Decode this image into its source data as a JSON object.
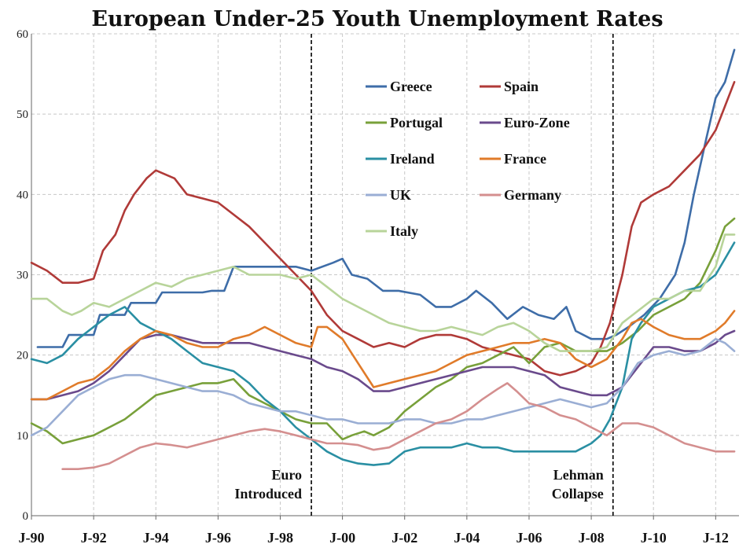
{
  "chart_data": {
    "type": "line",
    "title": "European Under-25 Youth Unemployment Rates",
    "xlabel": "",
    "ylabel": "",
    "ylim": [
      0,
      60
    ],
    "yticks": [
      0,
      10,
      20,
      30,
      40,
      50,
      60
    ],
    "xlim": [
      1990.0,
      2012.75
    ],
    "xticks": [
      {
        "value": 1990,
        "label": "J-90"
      },
      {
        "value": 1992,
        "label": "J-92"
      },
      {
        "value": 1994,
        "label": "J-94"
      },
      {
        "value": 1996,
        "label": "J-96"
      },
      {
        "value": 1998,
        "label": "J-98"
      },
      {
        "value": 2000,
        "label": "J-00"
      },
      {
        "value": 2002,
        "label": "J-02"
      },
      {
        "value": 2004,
        "label": "J-04"
      },
      {
        "value": 2006,
        "label": "J-06"
      },
      {
        "value": 2008,
        "label": "J-08"
      },
      {
        "value": 2010,
        "label": "J-10"
      },
      {
        "value": 2012,
        "label": "J-12"
      }
    ],
    "grid": true,
    "legend_placement": "top-center",
    "annotations": [
      {
        "x": 1999.0,
        "lines": [
          "Euro",
          "Introduced"
        ],
        "side": "left"
      },
      {
        "x": 2008.7,
        "lines": [
          "Lehman",
          "Collapse"
        ],
        "side": "left"
      }
    ],
    "series": [
      {
        "name": "Greece",
        "color": "#3e6da8",
        "x": [
          1990.2,
          1991.0,
          1991.2,
          1992.0,
          1992.2,
          1993.0,
          1993.2,
          1994.0,
          1994.2,
          1995.5,
          1995.8,
          1996.2,
          1996.5,
          1998.5,
          1999.0,
          1999.7,
          2000.0,
          2000.3,
          2000.8,
          2001.3,
          2001.8,
          2002.5,
          2003.0,
          2003.5,
          2004.0,
          2004.3,
          2004.8,
          2005.3,
          2005.8,
          2006.3,
          2006.8,
          2007.2,
          2007.5,
          2008.0,
          2008.5,
          2008.8,
          2009.2,
          2009.7,
          2010.2,
          2010.7,
          2011.0,
          2011.3,
          2011.7,
          2012.0,
          2012.3,
          2012.6
        ],
        "y": [
          21,
          21,
          22.5,
          22.5,
          25,
          25,
          26.5,
          26.5,
          27.8,
          27.8,
          28,
          28,
          31,
          31,
          30.5,
          31.5,
          32,
          30,
          29.5,
          28,
          28,
          27.5,
          26,
          26,
          27,
          28,
          26.5,
          24.5,
          26,
          25,
          24.5,
          26,
          23,
          22,
          22,
          22.5,
          23.5,
          25,
          27,
          30,
          34,
          40,
          47,
          52,
          54,
          58
        ]
      },
      {
        "name": "Spain",
        "color": "#b03a38",
        "x": [
          1990.0,
          1990.5,
          1991.0,
          1991.5,
          1992.0,
          1992.3,
          1992.7,
          1993.0,
          1993.3,
          1993.7,
          1994.0,
          1994.3,
          1994.6,
          1995.0,
          1995.5,
          1996.0,
          1996.5,
          1997.0,
          1997.5,
          1998.0,
          1998.5,
          1999.0,
          1999.5,
          2000.0,
          2000.5,
          2001.0,
          2001.5,
          2002.0,
          2002.5,
          2003.0,
          2003.5,
          2004.0,
          2004.5,
          2005.0,
          2005.5,
          2006.0,
          2006.5,
          2007.0,
          2007.5,
          2008.0,
          2008.3,
          2008.6,
          2009.0,
          2009.3,
          2009.6,
          2010.0,
          2010.5,
          2011.0,
          2011.5,
          2012.0,
          2012.3,
          2012.6
        ],
        "y": [
          31.5,
          30.5,
          29,
          29,
          29.5,
          33,
          35,
          38,
          40,
          42,
          43,
          42.5,
          42,
          40,
          39.5,
          39,
          37.5,
          36,
          34,
          32,
          30,
          28,
          25,
          23,
          22,
          21,
          21.5,
          21,
          22,
          22.5,
          22.5,
          22,
          21,
          20.5,
          20,
          19.5,
          18,
          17.5,
          18,
          19,
          21,
          24,
          30,
          36,
          39,
          40,
          41,
          43,
          45,
          48,
          51,
          54
        ]
      },
      {
        "name": "Portugal",
        "color": "#78a03a",
        "x": [
          1990.0,
          1990.5,
          1991.0,
          1991.5,
          1992.0,
          1992.5,
          1993.0,
          1993.5,
          1994.0,
          1994.5,
          1995.0,
          1995.5,
          1996.0,
          1996.5,
          1997.0,
          1997.5,
          1998.0,
          1998.5,
          1999.0,
          1999.5,
          2000.0,
          2000.3,
          2000.7,
          2001.0,
          2001.5,
          2002.0,
          2002.5,
          2003.0,
          2003.5,
          2004.0,
          2004.5,
          2005.0,
          2005.5,
          2006.0,
          2006.5,
          2007.0,
          2007.5,
          2008.0,
          2008.5,
          2009.0,
          2009.5,
          2010.0,
          2010.5,
          2011.0,
          2011.5,
          2012.0,
          2012.3,
          2012.6
        ],
        "y": [
          11.5,
          10.5,
          9,
          9.5,
          10,
          11,
          12,
          13.5,
          15,
          15.5,
          16,
          16.5,
          16.5,
          17,
          15,
          14,
          13,
          12,
          11.5,
          11.5,
          9.5,
          10,
          10.5,
          10,
          11,
          13,
          14.5,
          16,
          17,
          18.5,
          19,
          20,
          21,
          19,
          21,
          21.5,
          20.5,
          20.5,
          20.5,
          21.5,
          23,
          25,
          26,
          27,
          29,
          33,
          36,
          37
        ]
      },
      {
        "name": "Euro-Zone",
        "color": "#6a4a8c",
        "x": [
          1990.0,
          1990.5,
          1991.0,
          1991.5,
          1992.0,
          1992.5,
          1993.0,
          1993.5,
          1994.0,
          1994.5,
          1995.0,
          1995.5,
          1996.0,
          1996.5,
          1997.0,
          1997.5,
          1998.0,
          1998.5,
          1999.0,
          1999.5,
          2000.0,
          2000.5,
          2001.0,
          2001.5,
          2002.0,
          2002.5,
          2003.0,
          2003.5,
          2004.0,
          2004.5,
          2005.0,
          2005.5,
          2006.0,
          2006.5,
          2007.0,
          2007.5,
          2008.0,
          2008.5,
          2009.0,
          2009.5,
          2010.0,
          2010.5,
          2011.0,
          2011.5,
          2012.0,
          2012.3,
          2012.6
        ],
        "y": [
          14.5,
          14.5,
          15,
          15.5,
          16.5,
          18,
          20,
          22,
          22.5,
          22.5,
          22,
          21.5,
          21.5,
          21.5,
          21.5,
          21,
          20.5,
          20,
          19.5,
          18.5,
          18,
          17,
          15.5,
          15.5,
          16,
          16.5,
          17,
          17.5,
          18,
          18.5,
          18.5,
          18.5,
          18,
          17.5,
          16,
          15.5,
          15,
          15,
          16,
          18.5,
          21,
          21,
          20.5,
          20.5,
          21.5,
          22.5,
          23
        ]
      },
      {
        "name": "Ireland",
        "color": "#2a8fa3",
        "x": [
          1990.0,
          1990.5,
          1991.0,
          1991.5,
          1992.0,
          1992.5,
          1993.0,
          1993.5,
          1994.0,
          1994.5,
          1995.0,
          1995.5,
          1996.0,
          1996.5,
          1997.0,
          1997.5,
          1998.0,
          1998.5,
          1999.0,
          1999.5,
          2000.0,
          2000.5,
          2001.0,
          2001.5,
          2002.0,
          2002.5,
          2003.0,
          2003.5,
          2004.0,
          2004.5,
          2005.0,
          2005.5,
          2006.0,
          2006.5,
          2007.0,
          2007.5,
          2008.0,
          2008.3,
          2008.6,
          2009.0,
          2009.3,
          2009.6,
          2010.0,
          2010.5,
          2011.0,
          2011.5,
          2012.0,
          2012.3,
          2012.6
        ],
        "y": [
          19.5,
          19,
          20,
          22,
          23.5,
          25,
          26,
          24,
          23,
          22,
          20.5,
          19,
          18.5,
          18,
          16.5,
          14.5,
          13,
          11,
          9.5,
          8,
          7,
          6.5,
          6.3,
          6.5,
          8,
          8.5,
          8.5,
          8.5,
          9,
          8.5,
          8.5,
          8,
          8,
          8,
          8,
          8,
          9,
          10,
          12,
          16,
          22,
          24,
          26,
          27,
          28,
          28.5,
          30,
          32,
          34
        ]
      },
      {
        "name": "France",
        "color": "#e07b2a",
        "x": [
          1990.0,
          1990.5,
          1991.0,
          1991.5,
          1992.0,
          1992.5,
          1993.0,
          1993.5,
          1994.0,
          1994.5,
          1995.0,
          1995.5,
          1996.0,
          1996.5,
          1997.0,
          1997.5,
          1998.0,
          1998.5,
          1999.0,
          1999.2,
          1999.5,
          2000.0,
          2000.5,
          2001.0,
          2001.5,
          2002.0,
          2002.5,
          2003.0,
          2003.5,
          2004.0,
          2004.5,
          2005.0,
          2005.5,
          2006.0,
          2006.5,
          2007.0,
          2007.5,
          2008.0,
          2008.5,
          2009.0,
          2009.3,
          2009.6,
          2010.0,
          2010.5,
          2011.0,
          2011.5,
          2012.0,
          2012.3,
          2012.6
        ],
        "y": [
          14.5,
          14.5,
          15.5,
          16.5,
          17,
          18.5,
          20.5,
          22,
          23,
          22.5,
          21.5,
          21,
          21,
          22,
          22.5,
          23.5,
          22.5,
          21.5,
          21,
          23.5,
          23.5,
          22,
          19,
          16,
          16.5,
          17,
          17.5,
          18,
          19,
          20,
          20.5,
          21,
          21.5,
          21.5,
          22,
          21.5,
          19.5,
          18.5,
          19.5,
          22,
          24,
          24.5,
          23.5,
          22.5,
          22,
          22,
          23,
          24,
          25.5
        ]
      },
      {
        "name": "UK",
        "color": "#9aaed4",
        "x": [
          1990.0,
          1990.5,
          1991.0,
          1991.5,
          1992.0,
          1992.5,
          1993.0,
          1993.5,
          1994.0,
          1994.5,
          1995.0,
          1995.5,
          1996.0,
          1996.5,
          1997.0,
          1997.5,
          1998.0,
          1998.5,
          1999.0,
          1999.5,
          2000.0,
          2000.5,
          2001.0,
          2001.5,
          2002.0,
          2002.5,
          2003.0,
          2003.5,
          2004.0,
          2004.5,
          2005.0,
          2005.5,
          2006.0,
          2006.5,
          2007.0,
          2007.5,
          2008.0,
          2008.5,
          2009.0,
          2009.5,
          2010.0,
          2010.5,
          2011.0,
          2011.5,
          2012.0,
          2012.3,
          2012.6
        ],
        "y": [
          10,
          11,
          13,
          15,
          16,
          17,
          17.5,
          17.5,
          17,
          16.5,
          16,
          15.5,
          15.5,
          15,
          14,
          13.5,
          13,
          13,
          12.5,
          12,
          12,
          11.5,
          11.5,
          11.5,
          12,
          12,
          11.5,
          11.5,
          12,
          12,
          12.5,
          13,
          13.5,
          14,
          14.5,
          14,
          13.5,
          14,
          16,
          19,
          20,
          20.5,
          20,
          20.5,
          22,
          21.5,
          20.5
        ]
      },
      {
        "name": "Germany",
        "color": "#d48f8f",
        "x": [
          1991.0,
          1991.5,
          1992.0,
          1992.5,
          1993.0,
          1993.5,
          1994.0,
          1994.5,
          1995.0,
          1995.5,
          1996.0,
          1996.5,
          1997.0,
          1997.5,
          1998.0,
          1998.5,
          1999.0,
          1999.5,
          2000.0,
          2000.5,
          2001.0,
          2001.5,
          2002.0,
          2002.5,
          2003.0,
          2003.5,
          2004.0,
          2004.5,
          2005.0,
          2005.3,
          2005.6,
          2006.0,
          2006.5,
          2007.0,
          2007.5,
          2008.0,
          2008.5,
          2009.0,
          2009.5,
          2010.0,
          2010.5,
          2011.0,
          2011.5,
          2012.0,
          2012.3,
          2012.6
        ],
        "y": [
          5.8,
          5.8,
          6,
          6.5,
          7.5,
          8.5,
          9,
          8.8,
          8.5,
          9,
          9.5,
          10,
          10.5,
          10.8,
          10.5,
          10,
          9.5,
          9,
          9,
          8.8,
          8.2,
          8.5,
          9.5,
          10.5,
          11.5,
          12,
          13,
          14.5,
          15.8,
          16.5,
          15.5,
          14,
          13.5,
          12.5,
          12,
          11,
          10,
          11.5,
          11.5,
          11,
          10,
          9,
          8.5,
          8,
          8,
          8
        ]
      },
      {
        "name": "Italy",
        "color": "#b8d49a",
        "x": [
          1990.0,
          1990.5,
          1991.0,
          1991.3,
          1991.6,
          1992.0,
          1992.5,
          1993.0,
          1993.5,
          1994.0,
          1994.5,
          1995.0,
          1995.5,
          1996.0,
          1996.5,
          1997.0,
          1997.5,
          1998.0,
          1998.5,
          1999.0,
          1999.5,
          2000.0,
          2000.5,
          2001.0,
          2001.5,
          2002.0,
          2002.5,
          2003.0,
          2003.5,
          2004.0,
          2004.5,
          2005.0,
          2005.5,
          2006.0,
          2006.5,
          2007.0,
          2007.5,
          2008.0,
          2008.5,
          2009.0,
          2009.5,
          2010.0,
          2010.5,
          2011.0,
          2011.5,
          2012.0,
          2012.3,
          2012.6
        ],
        "y": [
          27,
          27,
          25.5,
          25,
          25.5,
          26.5,
          26,
          27,
          28,
          29,
          28.5,
          29.5,
          30,
          30.5,
          31,
          30,
          30,
          30,
          29.5,
          30,
          28.5,
          27,
          26,
          25,
          24,
          23.5,
          23,
          23,
          23.5,
          23,
          22.5,
          23.5,
          24,
          23,
          21.5,
          20.5,
          20.5,
          20.5,
          21,
          24,
          25.5,
          27,
          27,
          28,
          28,
          31,
          35,
          35
        ]
      }
    ]
  }
}
